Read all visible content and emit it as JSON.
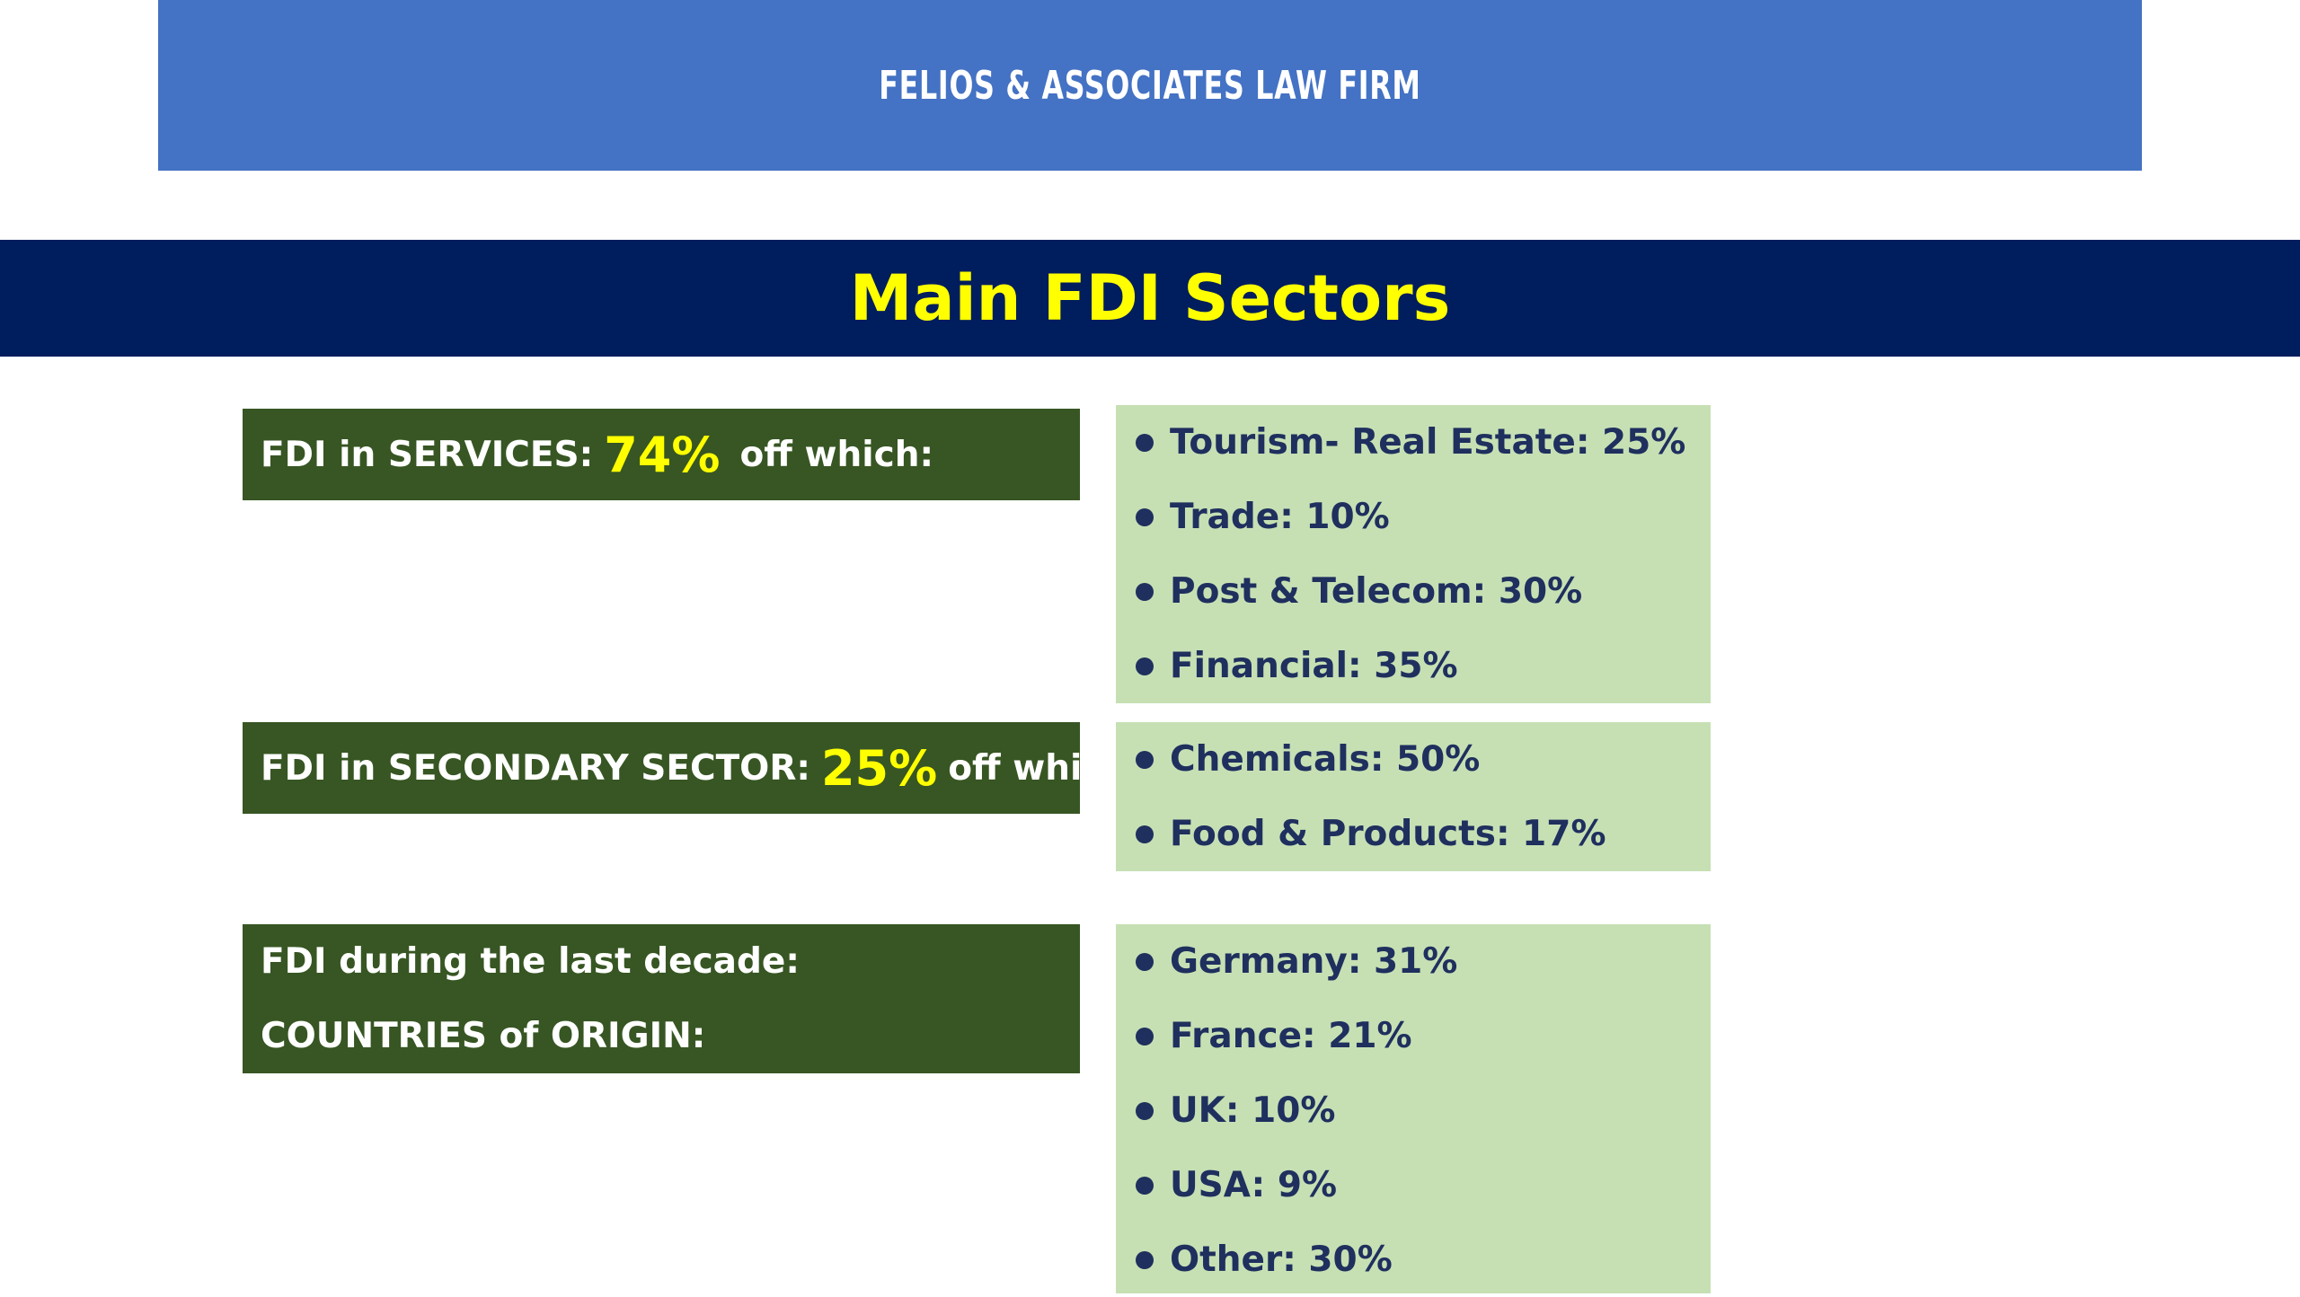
{
  "header": {
    "firm_name": "FELIOS & ASSOCIATES LAW FIRM",
    "title": "Main FDI Sectors"
  },
  "services": {
    "label_prefix": "FDI in SERVICES:",
    "percent": "74%",
    "label_suffix": "off which:",
    "items": [
      "Tourism- Real Estate: 25%",
      "Trade: 10%",
      "Post & Telecom: 30%",
      "Financial: 35%"
    ]
  },
  "secondary": {
    "label_prefix": "FDI in SECONDARY SECTOR:",
    "percent": "25%",
    "label_suffix": "off which:",
    "items": [
      "Chemicals: 50%",
      "Food & Products: 17%"
    ]
  },
  "origin": {
    "label_line1": "FDI during the last decade:",
    "label_line2": "COUNTRIES of ORIGIN:",
    "items": [
      "Germany: 31%",
      "France: 21%",
      "UK: 10%",
      "USA: 9%",
      "Other: 30%"
    ]
  },
  "colors": {
    "firm_banner": "#4472c4",
    "title_bar": "#001d5d",
    "title_text": "#ffff00",
    "label_box": "#375623",
    "list_box": "#c6e0b4",
    "list_text": "#1f2f5e"
  }
}
